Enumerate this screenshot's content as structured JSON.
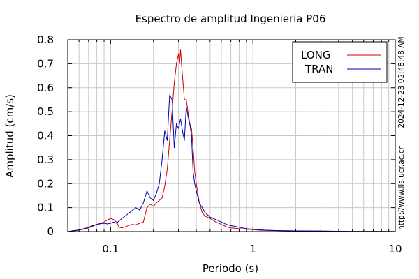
{
  "chart_data": {
    "type": "line",
    "title": "Espectro de amplitud Ingenieria P06",
    "xlabel": "Periodo (s)",
    "ylabel": "Amplitud (cm/s)",
    "x_scale": "log",
    "xlim": [
      0.05,
      10
    ],
    "ylim": [
      0,
      0.8
    ],
    "x_ticks": [
      0.1,
      1,
      10
    ],
    "x_tick_labels": [
      "0.1",
      "1",
      "10"
    ],
    "y_ticks": [
      0,
      0.1,
      0.2,
      0.3,
      0.4,
      0.5,
      0.6,
      0.7,
      0.8
    ],
    "y_tick_labels": [
      "0",
      "0.1",
      "0.2",
      "0.3",
      "0.4",
      "0.5",
      "0.6",
      "0.7",
      "0.8"
    ],
    "grid": true,
    "legend_position": "top-right",
    "timestamp": "2024-12-23 02:48:48 AM",
    "source_url": "http://www.lis.ucr.ac.cr",
    "series": [
      {
        "name": "LONG",
        "color": "#cc0000",
        "x": [
          0.05,
          0.055,
          0.06,
          0.065,
          0.07,
          0.075,
          0.08,
          0.085,
          0.09,
          0.095,
          0.1,
          0.105,
          0.11,
          0.115,
          0.12,
          0.13,
          0.14,
          0.15,
          0.16,
          0.17,
          0.18,
          0.19,
          0.2,
          0.21,
          0.22,
          0.23,
          0.24,
          0.25,
          0.26,
          0.27,
          0.28,
          0.29,
          0.3,
          0.305,
          0.31,
          0.315,
          0.32,
          0.325,
          0.33,
          0.34,
          0.35,
          0.36,
          0.37,
          0.38,
          0.39,
          0.4,
          0.42,
          0.44,
          0.46,
          0.48,
          0.5,
          0.55,
          0.6,
          0.65,
          0.7,
          0.8,
          0.9,
          1.0,
          1.1,
          1.2,
          1.5,
          2,
          3,
          5,
          8,
          10
        ],
        "y": [
          0.0,
          0.003,
          0.006,
          0.01,
          0.015,
          0.022,
          0.03,
          0.035,
          0.04,
          0.048,
          0.055,
          0.05,
          0.04,
          0.018,
          0.015,
          0.022,
          0.03,
          0.028,
          0.035,
          0.04,
          0.1,
          0.115,
          0.105,
          0.12,
          0.13,
          0.14,
          0.19,
          0.26,
          0.38,
          0.5,
          0.62,
          0.7,
          0.74,
          0.7,
          0.76,
          0.7,
          0.65,
          0.6,
          0.55,
          0.55,
          0.5,
          0.45,
          0.43,
          0.35,
          0.25,
          0.2,
          0.12,
          0.08,
          0.065,
          0.06,
          0.055,
          0.04,
          0.03,
          0.02,
          0.015,
          0.012,
          0.01,
          0.008,
          0.006,
          0.005,
          0.004,
          0.003,
          0.002,
          0.001,
          0.001,
          0.001
        ]
      },
      {
        "name": "TRAN",
        "color": "#0000aa",
        "x": [
          0.05,
          0.055,
          0.06,
          0.065,
          0.07,
          0.075,
          0.08,
          0.085,
          0.09,
          0.095,
          0.1,
          0.105,
          0.11,
          0.115,
          0.12,
          0.13,
          0.14,
          0.15,
          0.16,
          0.17,
          0.18,
          0.19,
          0.2,
          0.21,
          0.22,
          0.23,
          0.24,
          0.25,
          0.26,
          0.27,
          0.28,
          0.29,
          0.3,
          0.31,
          0.32,
          0.33,
          0.34,
          0.35,
          0.36,
          0.37,
          0.38,
          0.39,
          0.4,
          0.42,
          0.44,
          0.46,
          0.48,
          0.5,
          0.55,
          0.6,
          0.65,
          0.7,
          0.8,
          0.9,
          1.0,
          1.1,
          1.2,
          1.5,
          2,
          3,
          5,
          8,
          10
        ],
        "y": [
          0.0,
          0.004,
          0.007,
          0.012,
          0.018,
          0.025,
          0.03,
          0.033,
          0.035,
          0.032,
          0.035,
          0.04,
          0.035,
          0.045,
          0.055,
          0.07,
          0.085,
          0.1,
          0.09,
          0.12,
          0.17,
          0.14,
          0.13,
          0.16,
          0.2,
          0.3,
          0.42,
          0.38,
          0.57,
          0.55,
          0.35,
          0.45,
          0.43,
          0.47,
          0.42,
          0.38,
          0.52,
          0.48,
          0.45,
          0.4,
          0.25,
          0.2,
          0.17,
          0.12,
          0.1,
          0.08,
          0.07,
          0.06,
          0.05,
          0.04,
          0.03,
          0.025,
          0.018,
          0.012,
          0.01,
          0.008,
          0.006,
          0.004,
          0.003,
          0.002,
          0.001,
          0.001,
          0.0
        ]
      }
    ]
  }
}
